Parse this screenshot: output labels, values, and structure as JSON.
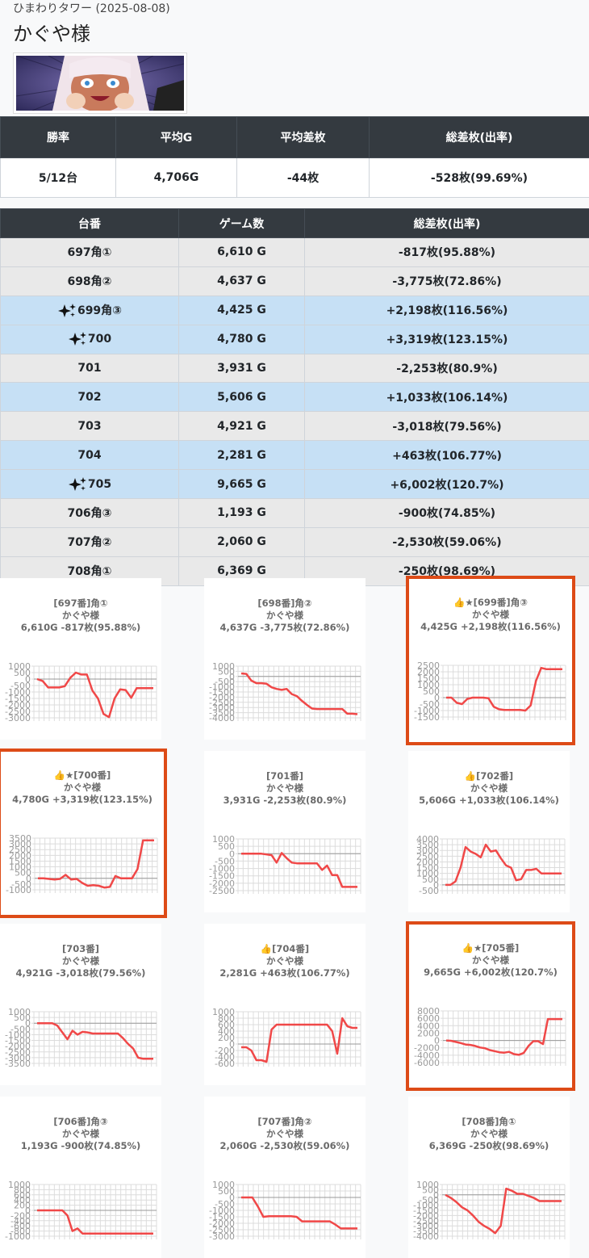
{
  "header": {
    "subtitle": "ひまわりタワー (2025-08-08)",
    "title": "かぐや様"
  },
  "summary": {
    "headers": [
      "勝率",
      "平均G",
      "平均差枚",
      "総差枚(出率)"
    ],
    "values": [
      "5/12台",
      "4,706G",
      "-44枚",
      "-528枚(99.69%)"
    ]
  },
  "machines": {
    "headers": [
      "台番",
      "ゲーム数",
      "総差枚(出率)"
    ],
    "rows": [
      {
        "num": "697角①",
        "games": "6,610 G",
        "total": "-817枚(95.88%)",
        "win": false,
        "spark": false
      },
      {
        "num": "698角②",
        "games": "4,637 G",
        "total": "-3,775枚(72.86%)",
        "win": false,
        "spark": false
      },
      {
        "num": "699角③",
        "games": "4,425 G",
        "total": "+2,198枚(116.56%)",
        "win": true,
        "spark": true
      },
      {
        "num": "700",
        "games": "4,780 G",
        "total": "+3,319枚(123.15%)",
        "win": true,
        "spark": true
      },
      {
        "num": "701",
        "games": "3,931 G",
        "total": "-2,253枚(80.9%)",
        "win": false,
        "spark": false
      },
      {
        "num": "702",
        "games": "5,606 G",
        "total": "+1,033枚(106.14%)",
        "win": true,
        "spark": false
      },
      {
        "num": "703",
        "games": "4,921 G",
        "total": "-3,018枚(79.56%)",
        "win": false,
        "spark": false
      },
      {
        "num": "704",
        "games": "2,281 G",
        "total": "+463枚(106.77%)",
        "win": true,
        "spark": false
      },
      {
        "num": "705",
        "games": "9,665 G",
        "total": "+6,002枚(120.7%)",
        "win": true,
        "spark": true
      },
      {
        "num": "706角③",
        "games": "1,193 G",
        "total": "-900枚(74.85%)",
        "win": false,
        "spark": false
      },
      {
        "num": "707角②",
        "games": "2,060 G",
        "total": "-2,530枚(59.06%)",
        "win": false,
        "spark": false
      },
      {
        "num": "708角①",
        "games": "6,369 G",
        "total": "-250枚(98.69%)",
        "win": false,
        "spark": false
      }
    ]
  },
  "colors": {
    "line": "#f04848",
    "highlight": "#dd4b17",
    "win_row": "#c6e0f5",
    "lose_row": "#e9e9e9",
    "header_bg": "#343a40"
  },
  "chart_data": [
    {
      "type": "line",
      "line1": "[697番]角①",
      "line2": "かぐや様",
      "line3": "6,610G -817枚(95.88%)",
      "highlight": false,
      "yticks": [
        "1000",
        "500",
        "0",
        "-500",
        "-1000",
        "-1500",
        "-2000",
        "-2500",
        "-3000"
      ],
      "ylim": [
        -3000,
        1000
      ],
      "values": [
        0,
        -150,
        -650,
        -650,
        -650,
        -550,
        100,
        500,
        350,
        350,
        -900,
        -1500,
        -2700,
        -2950,
        -1500,
        -800,
        -850,
        -1450,
        -700,
        -700,
        -700,
        -700
      ]
    },
    {
      "type": "line",
      "line1": "[698番]角②",
      "line2": "かぐや様",
      "line3": "4,637G -3,775枚(72.86%)",
      "highlight": false,
      "yticks": [
        "1000",
        "500",
        "0",
        "-500",
        "-1000",
        "-1500",
        "-2000",
        "-2500",
        "-3000",
        "-3500",
        "-4000"
      ],
      "ylim": [
        -4000,
        1000
      ],
      "values": [
        300,
        250,
        -400,
        -650,
        -650,
        -700,
        -1050,
        -1200,
        -1300,
        -1200,
        -1700,
        -1900,
        -2350,
        -2750,
        -3100,
        -3150,
        -3150,
        -3150,
        -3150,
        -3150,
        -3150,
        -3600,
        -3600,
        -3650
      ]
    },
    {
      "type": "line",
      "line1": "👍★[699番]角③",
      "line2": "かぐや様",
      "line3": "4,425G +2,198枚(116.56%)",
      "highlight": true,
      "yticks": [
        "2500",
        "2000",
        "1500",
        "1000",
        "500",
        "0",
        "-500",
        "-1000",
        "-1500"
      ],
      "ylim": [
        -1500,
        2500
      ],
      "values": [
        0,
        0,
        -400,
        -500,
        -100,
        0,
        0,
        0,
        -50,
        -700,
        -900,
        -950,
        -950,
        -950,
        -950,
        -1000,
        -600,
        1300,
        2300,
        2200,
        2200,
        2200,
        2200
      ]
    },
    {
      "type": "line",
      "line1": "👍★[700番]",
      "line2": "かぐや様",
      "line3": "4,780G +3,319枚(123.15%)",
      "highlight": true,
      "yticks": [
        "3500",
        "3000",
        "2500",
        "2000",
        "1500",
        "1000",
        "500",
        "0",
        "-500",
        "-1000"
      ],
      "ylim": [
        -1000,
        3500
      ],
      "values": [
        0,
        0,
        -50,
        -100,
        -50,
        300,
        -100,
        -50,
        -400,
        -650,
        -600,
        -650,
        -800,
        -750,
        200,
        0,
        0,
        0,
        800,
        3300,
        3300,
        3300
      ]
    },
    {
      "type": "line",
      "line1": "[701番]",
      "line2": "かぐや様",
      "line3": "3,931G -2,253枚(80.9%)",
      "highlight": false,
      "yticks": [
        "1000",
        "500",
        "0",
        "-500",
        "-1000",
        "-1500",
        "-2000",
        "-2500"
      ],
      "ylim": [
        -2500,
        1000
      ],
      "values": [
        0,
        0,
        0,
        0,
        0,
        -50,
        -100,
        -600,
        50,
        -300,
        -600,
        -650,
        -650,
        -650,
        -650,
        -650,
        -1100,
        -800,
        -1450,
        -1450,
        -2250,
        -2250,
        -2250,
        -2250
      ]
    },
    {
      "type": "line",
      "line1": "👍[702番]",
      "line2": "かぐや様",
      "line3": "5,606G +1,033枚(106.14%)",
      "highlight": false,
      "yticks": [
        "4000",
        "3500",
        "3000",
        "2500",
        "2000",
        "1500",
        "1000",
        "500",
        "0",
        "-500"
      ],
      "ylim": [
        -500,
        4000
      ],
      "values": [
        0,
        0,
        300,
        1500,
        3300,
        2900,
        2700,
        2400,
        3500,
        2900,
        3000,
        2300,
        1700,
        1500,
        400,
        500,
        1300,
        1300,
        1400,
        1000,
        1000,
        1000,
        1000,
        1000
      ]
    },
    {
      "type": "line",
      "line1": "[703番]",
      "line2": "かぐや様",
      "line3": "4,921G -3,018枚(79.56%)",
      "highlight": false,
      "yticks": [
        "1000",
        "500",
        "0",
        "-500",
        "-1000",
        "-1500",
        "-2000",
        "-2500",
        "-3000",
        "-3500"
      ],
      "ylim": [
        -3500,
        1000
      ],
      "values": [
        0,
        0,
        0,
        0,
        -200,
        -800,
        -1400,
        -650,
        -1000,
        -750,
        -800,
        -900,
        -900,
        -900,
        -900,
        -900,
        -900,
        -1300,
        -1800,
        -2200,
        -3000,
        -3100,
        -3100,
        -3100
      ]
    },
    {
      "type": "line",
      "line1": "👍[704番]",
      "line2": "かぐや様",
      "line3": "2,281G +463枚(106.77%)",
      "highlight": false,
      "yticks": [
        "1000",
        "800",
        "600",
        "400",
        "200",
        "0",
        "-200",
        "-400",
        "-600"
      ],
      "ylim": [
        -600,
        1000
      ],
      "values": [
        -100,
        -100,
        -200,
        -500,
        -500,
        -550,
        450,
        600,
        600,
        600,
        600,
        600,
        600,
        600,
        600,
        600,
        600,
        600,
        400,
        -300,
        800,
        550,
        500,
        500
      ]
    },
    {
      "type": "line",
      "line1": "👍★[705番]",
      "line2": "かぐや様",
      "line3": "9,665G +6,002枚(120.7%)",
      "highlight": true,
      "yticks": [
        "8000",
        "6000",
        "4000",
        "2000",
        "0",
        "-2000",
        "-4000",
        "-6000"
      ],
      "ylim": [
        -6000,
        8000
      ],
      "values": [
        0,
        -100,
        -400,
        -700,
        -1100,
        -1200,
        -1500,
        -1900,
        -2100,
        -2600,
        -2900,
        -3200,
        -3300,
        -3100,
        -3700,
        -3900,
        -3400,
        -1500,
        -200,
        -200,
        -1000,
        5800,
        5800,
        5800,
        5800
      ]
    },
    {
      "type": "line",
      "line1": "[706番]角③",
      "line2": "かぐや様",
      "line3": "1,193G -900枚(74.85%)",
      "highlight": false,
      "yticks": [
        "1000",
        "800",
        "600",
        "400",
        "200",
        "0",
        "-200",
        "-400",
        "-600",
        "-800",
        "-1000"
      ],
      "ylim": [
        -1000,
        1000
      ],
      "values": [
        0,
        0,
        0,
        0,
        0,
        0,
        -200,
        -800,
        -700,
        -900,
        -900,
        -900,
        -900,
        -900,
        -900,
        -900,
        -900,
        -900,
        -900,
        -900,
        -900,
        -900,
        -900,
        -900
      ]
    },
    {
      "type": "line",
      "line1": "[707番]角②",
      "line2": "かぐや様",
      "line3": "2,060G -2,530枚(59.06%)",
      "highlight": false,
      "yticks": [
        "1000",
        "500",
        "0",
        "-500",
        "-1000",
        "-1500",
        "-2000",
        "-2500",
        "-3000"
      ],
      "ylim": [
        -3000,
        1000
      ],
      "values": [
        0,
        0,
        0,
        -700,
        -1500,
        -1450,
        -1450,
        -1450,
        -1450,
        -1450,
        -1500,
        -1850,
        -1850,
        -1850,
        -1850,
        -1850,
        -1850,
        -2100,
        -2400,
        -2400,
        -2400,
        -2400
      ]
    },
    {
      "type": "line",
      "line1": "[708番]角①",
      "line2": "かぐや様",
      "line3": "6,369G -250枚(98.69%)",
      "highlight": false,
      "yticks": [
        "1000",
        "500",
        "0",
        "-500",
        "-1000",
        "-1500",
        "-2000",
        "-2500",
        "-3000",
        "-3500",
        "-4000"
      ],
      "ylim": [
        -4000,
        1000
      ],
      "values": [
        0,
        -300,
        -700,
        -1200,
        -1500,
        -2000,
        -2600,
        -3000,
        -3300,
        -3700,
        -3000,
        600,
        400,
        100,
        100,
        -100,
        -300,
        -600,
        -600,
        -600,
        -600,
        -600
      ]
    }
  ]
}
